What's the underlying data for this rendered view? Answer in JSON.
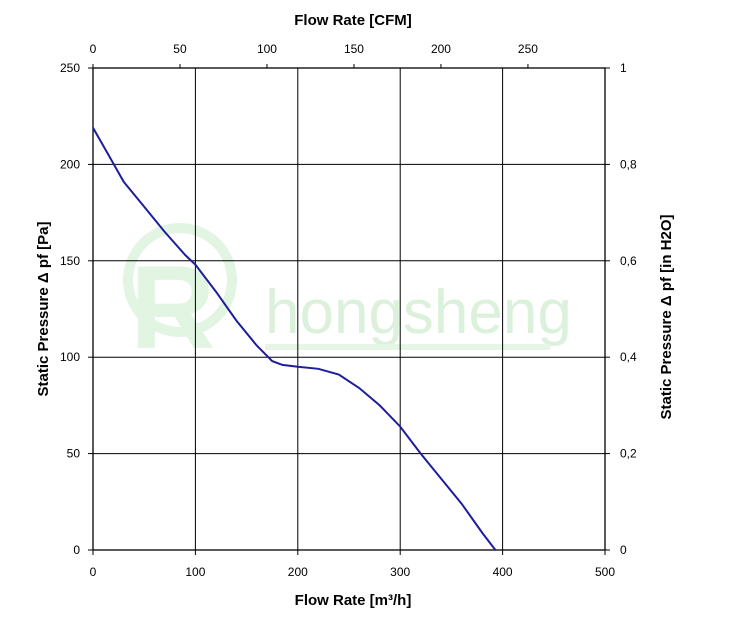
{
  "chart_data": {
    "type": "line",
    "x_bottom": {
      "label": "Flow Rate [m³/h]",
      "ticks": [
        "0",
        "100",
        "200",
        "300",
        "400",
        "500"
      ],
      "range": [
        0,
        500
      ]
    },
    "x_top": {
      "label": "Flow Rate [CFM]",
      "ticks": [
        "0",
        "50",
        "100",
        "150",
        "200",
        "250"
      ],
      "tick_values": [
        0,
        50,
        100,
        150,
        200,
        250
      ]
    },
    "y_left": {
      "label": "Static Pressure Δ pf [Pa]",
      "ticks": [
        "0",
        "50",
        "100",
        "150",
        "200",
        "250"
      ],
      "range": [
        0,
        250
      ]
    },
    "y_right": {
      "label": "Static Pressure Δ pf [in H2O]",
      "ticks": [
        "0",
        "0,2",
        "0,4",
        "0,6",
        "0,8",
        "1"
      ],
      "range": [
        0,
        1
      ]
    },
    "grid": true,
    "series": [
      {
        "color": "#1e1e9c",
        "x": [
          0,
          15,
          30,
          50,
          70,
          90,
          100,
          120,
          140,
          160,
          175,
          185,
          200,
          220,
          240,
          260,
          280,
          300,
          320,
          340,
          360,
          380,
          393
        ],
        "y": [
          219,
          205,
          191,
          178,
          165,
          153,
          148,
          134,
          119,
          106,
          98,
          96,
          95,
          94,
          91,
          84,
          75,
          64,
          50,
          37,
          24,
          9,
          0
        ]
      }
    ]
  },
  "watermark": {
    "text": "hongsheng",
    "color": "#d9f0d9"
  }
}
